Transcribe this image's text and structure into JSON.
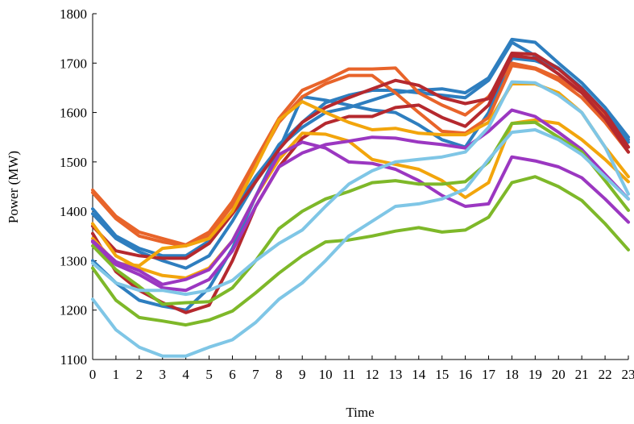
{
  "chart_data": {
    "type": "line",
    "title": "",
    "xlabel": "Time",
    "ylabel": "Power (MW)",
    "x": [
      0,
      1,
      2,
      3,
      4,
      5,
      6,
      7,
      8,
      9,
      10,
      11,
      12,
      13,
      14,
      15,
      16,
      17,
      18,
      19,
      20,
      21,
      22,
      23
    ],
    "xlim": [
      0,
      23
    ],
    "ylim": [
      1100,
      1800
    ],
    "yticks": [
      1100,
      1200,
      1300,
      1400,
      1500,
      1600,
      1700,
      1800
    ],
    "grid": false,
    "legend": "none",
    "series": [
      {
        "color": "#2e7ebf",
        "values": [
          1405,
          1350,
          1325,
          1310,
          1310,
          1340,
          1400,
          1470,
          1530,
          1570,
          1600,
          1610,
          1625,
          1640,
          1645,
          1648,
          1640,
          1670,
          1748,
          1742,
          1700,
          1660,
          1610,
          1550
        ]
      },
      {
        "color": "#2e7ebf",
        "values": [
          1395,
          1345,
          1318,
          1300,
          1285,
          1310,
          1380,
          1460,
          1535,
          1580,
          1620,
          1635,
          1645,
          1645,
          1640,
          1635,
          1630,
          1665,
          1742,
          1715,
          1690,
          1650,
          1595,
          1540
        ]
      },
      {
        "color": "#2e7ebf",
        "values": [
          1300,
          1255,
          1220,
          1208,
          1200,
          1245,
          1325,
          1430,
          1525,
          1632,
          1625,
          1615,
          1605,
          1600,
          1575,
          1545,
          1530,
          1600,
          1710,
          1705,
          1688,
          1650,
          1600,
          1545
        ]
      },
      {
        "color": "#e8642a",
        "values": [
          1443,
          1390,
          1358,
          1345,
          1332,
          1358,
          1420,
          1505,
          1588,
          1645,
          1665,
          1688,
          1688,
          1690,
          1640,
          1615,
          1595,
          1632,
          1700,
          1690,
          1670,
          1640,
          1595,
          1530
        ]
      },
      {
        "color": "#e8642a",
        "values": [
          1438,
          1385,
          1350,
          1338,
          1330,
          1352,
          1412,
          1495,
          1580,
          1632,
          1658,
          1675,
          1675,
          1640,
          1600,
          1562,
          1558,
          1590,
          1695,
          1688,
          1665,
          1630,
          1580,
          1520
        ]
      },
      {
        "color": "#b5292e",
        "values": [
          1370,
          1320,
          1310,
          1305,
          1305,
          1335,
          1395,
          1460,
          1525,
          1580,
          1610,
          1630,
          1648,
          1665,
          1655,
          1630,
          1618,
          1628,
          1720,
          1718,
          1688,
          1648,
          1600,
          1530
        ]
      },
      {
        "color": "#b5292e",
        "values": [
          1355,
          1278,
          1240,
          1215,
          1195,
          1210,
          1300,
          1410,
          1490,
          1548,
          1578,
          1592,
          1592,
          1610,
          1615,
          1590,
          1572,
          1615,
          1715,
          1710,
          1678,
          1640,
          1588,
          1520
        ]
      },
      {
        "color": "#f2a50c",
        "values": [
          1375,
          1310,
          1285,
          1270,
          1265,
          1285,
          1340,
          1430,
          1505,
          1558,
          1556,
          1542,
          1505,
          1495,
          1485,
          1462,
          1428,
          1458,
          1578,
          1585,
          1578,
          1545,
          1505,
          1460
        ]
      },
      {
        "color": "#f2a50c",
        "values": [
          1345,
          1295,
          1290,
          1325,
          1330,
          1345,
          1400,
          1490,
          1585,
          1622,
          1600,
          1580,
          1565,
          1568,
          1558,
          1555,
          1555,
          1580,
          1658,
          1658,
          1640,
          1600,
          1530,
          1470
        ]
      },
      {
        "color": "#9b37c1",
        "values": [
          1340,
          1298,
          1280,
          1252,
          1262,
          1282,
          1340,
          1430,
          1515,
          1540,
          1528,
          1500,
          1497,
          1485,
          1462,
          1432,
          1410,
          1415,
          1510,
          1502,
          1490,
          1468,
          1425,
          1378
        ]
      },
      {
        "color": "#9b37c1",
        "values": [
          1338,
          1292,
          1272,
          1245,
          1240,
          1262,
          1320,
          1410,
          1490,
          1518,
          1535,
          1542,
          1550,
          1548,
          1540,
          1535,
          1528,
          1562,
          1605,
          1592,
          1560,
          1525,
          1475,
          1425
        ]
      },
      {
        "color": "#7eb829",
        "values": [
          1330,
          1282,
          1248,
          1212,
          1215,
          1217,
          1245,
          1300,
          1365,
          1400,
          1425,
          1440,
          1458,
          1462,
          1455,
          1455,
          1460,
          1500,
          1578,
          1580,
          1550,
          1520,
          1462,
          1402
        ]
      },
      {
        "color": "#7eb829",
        "values": [
          1285,
          1220,
          1185,
          1178,
          1170,
          1180,
          1198,
          1235,
          1275,
          1310,
          1338,
          1342,
          1350,
          1360,
          1367,
          1358,
          1362,
          1388,
          1458,
          1470,
          1450,
          1422,
          1375,
          1322
        ]
      },
      {
        "color": "#7fc6e6",
        "values": [
          1222,
          1160,
          1125,
          1107,
          1107,
          1125,
          1140,
          1175,
          1222,
          1255,
          1300,
          1350,
          1380,
          1410,
          1415,
          1425,
          1445,
          1505,
          1560,
          1565,
          1545,
          1515,
          1470,
          1425
        ]
      },
      {
        "color": "#7fc6e6",
        "values": [
          1295,
          1255,
          1240,
          1240,
          1232,
          1240,
          1260,
          1300,
          1335,
          1362,
          1410,
          1455,
          1482,
          1500,
          1505,
          1510,
          1520,
          1570,
          1662,
          1660,
          1635,
          1600,
          1530,
          1435
        ]
      }
    ]
  }
}
